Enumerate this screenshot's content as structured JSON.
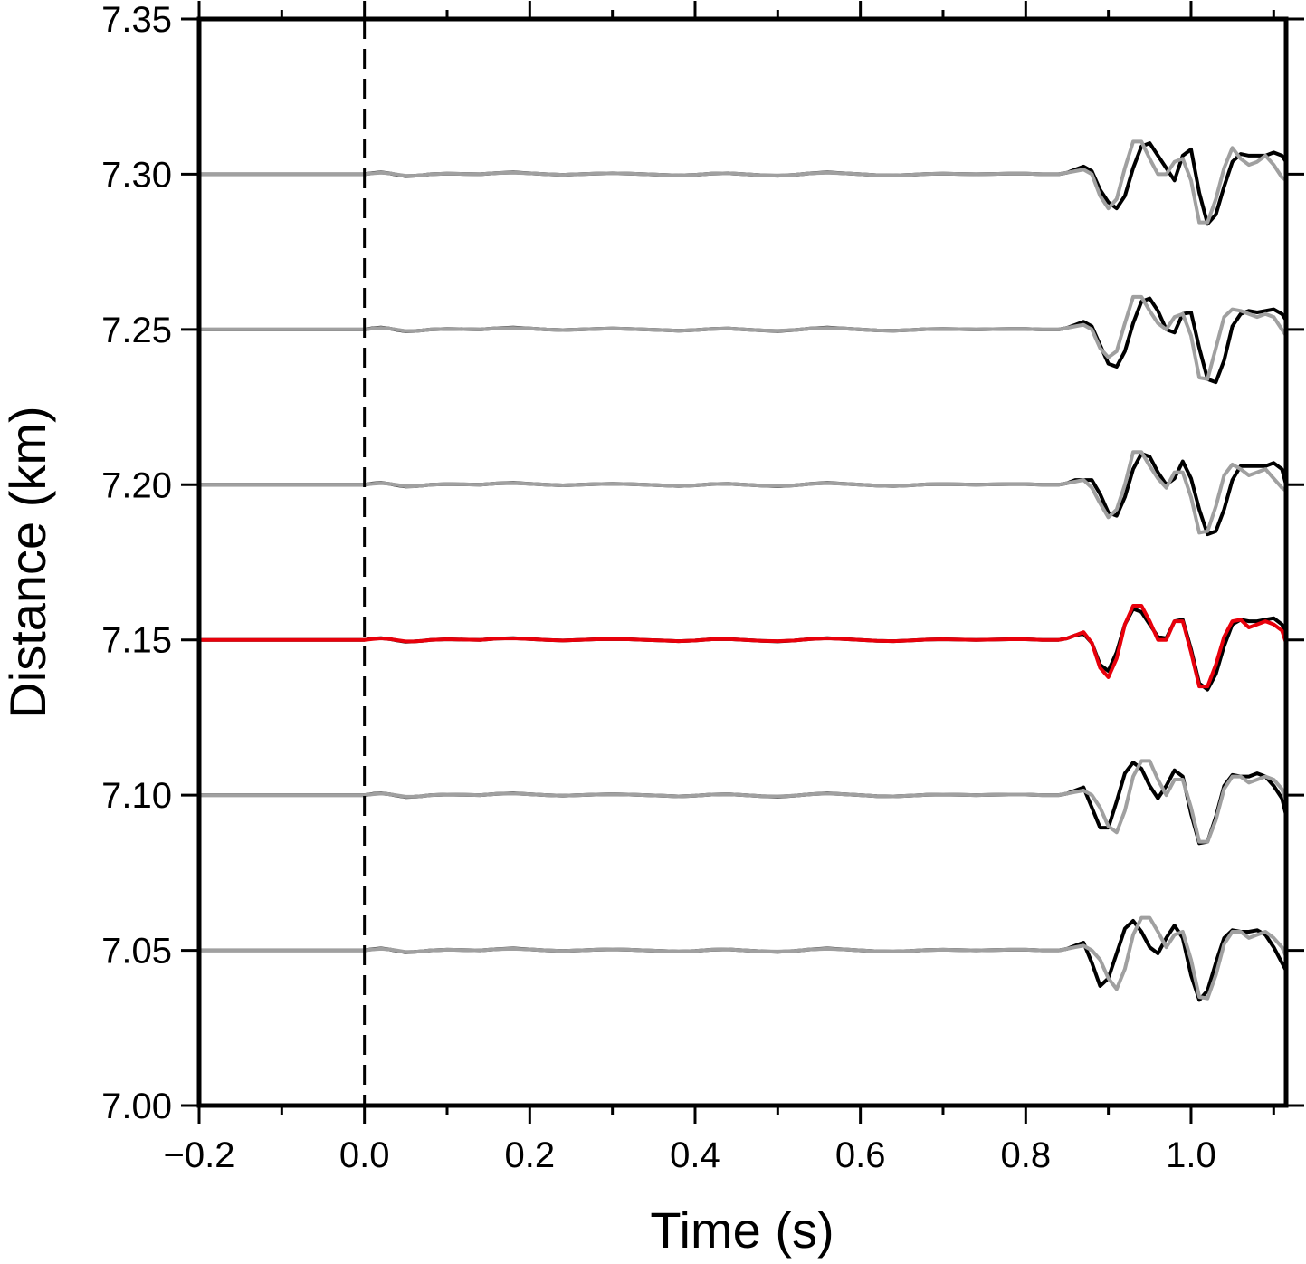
{
  "chart_data": {
    "type": "line",
    "title": "",
    "xlabel": "Time (s)",
    "ylabel": "Distance (km)",
    "xlim": [
      -0.2,
      1.115
    ],
    "ylim": [
      7.0,
      7.35
    ],
    "xticks": [
      -0.2,
      0.0,
      0.2,
      0.4,
      0.6,
      0.8,
      1.0
    ],
    "xtick_labels": [
      "−0.2",
      "0.0",
      "0.2",
      "0.4",
      "0.6",
      "0.8",
      "1.0"
    ],
    "yticks": [
      7.0,
      7.05,
      7.1,
      7.15,
      7.2,
      7.25,
      7.3,
      7.35
    ],
    "ytick_labels": [
      "7.00",
      "7.05",
      "7.10",
      "7.15",
      "7.20",
      "7.25",
      "7.30",
      "7.35"
    ],
    "reference_line": {
      "x": 0.0,
      "style": "dashed",
      "color": "#000000"
    },
    "grid": false,
    "colors": {
      "observed": "#000000",
      "synthetic": "#a0a0a0",
      "highlight": "#e8000b"
    },
    "trace_time": [
      -0.2,
      0.0,
      0.01,
      0.02,
      0.03,
      0.04,
      0.05,
      0.06,
      0.07,
      0.08,
      0.1,
      0.12,
      0.14,
      0.16,
      0.18,
      0.2,
      0.22,
      0.24,
      0.26,
      0.28,
      0.3,
      0.32,
      0.34,
      0.36,
      0.38,
      0.4,
      0.42,
      0.44,
      0.46,
      0.48,
      0.5,
      0.52,
      0.54,
      0.56,
      0.58,
      0.6,
      0.62,
      0.64,
      0.66,
      0.68,
      0.7,
      0.72,
      0.74,
      0.76,
      0.78,
      0.8,
      0.82,
      0.84,
      0.85,
      0.86,
      0.87,
      0.88,
      0.89,
      0.9,
      0.91,
      0.92,
      0.93,
      0.94,
      0.95,
      0.96,
      0.97,
      0.98,
      0.99,
      1.0,
      1.01,
      1.02,
      1.03,
      1.04,
      1.05,
      1.06,
      1.07,
      1.08,
      1.09,
      1.1,
      1.11,
      1.115
    ],
    "traces": [
      {
        "baseline": 7.3,
        "observed": [
          0,
          0,
          0.0004,
          0.0006,
          0.0003,
          -0.0002,
          -0.0006,
          -0.0005,
          -0.0003,
          0.0,
          0.0002,
          0.0001,
          0.0,
          0.0004,
          0.0006,
          0.0003,
          0.0,
          -0.0002,
          0.0,
          0.0002,
          0.0003,
          0.0002,
          0.0,
          -0.0002,
          -0.0004,
          -0.0002,
          0.0002,
          0.0003,
          0.0,
          -0.0003,
          -0.0005,
          -0.0002,
          0.0003,
          0.0006,
          0.0003,
          0.0,
          -0.0003,
          -0.0004,
          -0.0002,
          0.0001,
          0.0002,
          0.0001,
          0.0,
          0.0001,
          0.0002,
          0.0002,
          0.0,
          0.0,
          0.0005,
          0.0015,
          0.0025,
          0.001,
          -0.005,
          -0.009,
          -0.011,
          -0.007,
          0.002,
          0.009,
          0.01,
          0.006,
          0.002,
          -0.002,
          0.006,
          0.008,
          -0.006,
          -0.016,
          -0.013,
          -0.004,
          0.004,
          0.0065,
          0.006,
          0.006,
          0.006,
          0.007,
          0.006,
          0.004
        ],
        "synthetic": [
          0,
          0,
          0.0003,
          0.0005,
          0.0003,
          -0.0001,
          -0.0005,
          -0.0005,
          -0.0003,
          0.0,
          0.0002,
          0.0001,
          0.0,
          0.0004,
          0.0005,
          0.0003,
          0.0,
          -0.0002,
          0.0,
          0.0002,
          0.0003,
          0.0002,
          0.0,
          -0.0002,
          -0.0004,
          -0.0002,
          0.0002,
          0.0003,
          0.0,
          -0.0003,
          -0.0004,
          -0.0002,
          0.0003,
          0.0005,
          0.0003,
          0.0,
          -0.0003,
          -0.0004,
          -0.0002,
          0.0001,
          0.0002,
          0.0001,
          0.0,
          0.0001,
          0.0002,
          0.0002,
          0.0,
          0.0,
          0.0005,
          0.001,
          0.0015,
          0.0,
          -0.007,
          -0.011,
          -0.008,
          0.002,
          0.0105,
          0.0105,
          0.005,
          0.0,
          0.0,
          0.004,
          0.005,
          -0.002,
          -0.0155,
          -0.0155,
          -0.008,
          0.002,
          0.0085,
          0.005,
          0.003,
          0.004,
          0.006,
          0.003,
          -0.001,
          -0.002
        ]
      },
      {
        "baseline": 7.25,
        "observed": [
          0,
          0,
          0.0004,
          0.0006,
          0.0003,
          -0.0002,
          -0.0006,
          -0.0005,
          -0.0003,
          0.0,
          0.0002,
          0.0001,
          0.0,
          0.0004,
          0.0006,
          0.0003,
          0.0,
          -0.0002,
          0.0,
          0.0002,
          0.0003,
          0.0002,
          0.0,
          -0.0002,
          -0.0004,
          -0.0002,
          0.0002,
          0.0003,
          0.0,
          -0.0003,
          -0.0005,
          -0.0002,
          0.0003,
          0.0006,
          0.0003,
          0.0,
          -0.0003,
          -0.0004,
          -0.0002,
          0.0001,
          0.0002,
          0.0001,
          0.0,
          0.0001,
          0.0002,
          0.0002,
          0.0,
          0.0,
          0.0005,
          0.0015,
          0.0025,
          0.001,
          -0.005,
          -0.011,
          -0.012,
          -0.007,
          0.002,
          0.009,
          0.01,
          0.006,
          0.0,
          -0.001,
          0.005,
          0.0055,
          -0.006,
          -0.016,
          -0.017,
          -0.01,
          0.001,
          0.005,
          0.006,
          0.0055,
          0.006,
          0.0065,
          0.005,
          0.003
        ],
        "synthetic": [
          0,
          0,
          0.0003,
          0.0005,
          0.0003,
          -0.0001,
          -0.0005,
          -0.0005,
          -0.0003,
          0.0,
          0.0002,
          0.0001,
          0.0,
          0.0004,
          0.0005,
          0.0003,
          0.0,
          -0.0002,
          0.0,
          0.0002,
          0.0003,
          0.0002,
          0.0,
          -0.0002,
          -0.0004,
          -0.0002,
          0.0002,
          0.0003,
          0.0,
          -0.0003,
          -0.0004,
          -0.0002,
          0.0003,
          0.0005,
          0.0003,
          0.0,
          -0.0003,
          -0.0004,
          -0.0002,
          0.0001,
          0.0002,
          0.0001,
          0.0,
          0.0001,
          0.0002,
          0.0002,
          0.0,
          0.0,
          0.0005,
          0.001,
          0.0015,
          0.0,
          -0.006,
          -0.009,
          -0.007,
          0.002,
          0.0105,
          0.0105,
          0.006,
          0.002,
          0.0,
          0.004,
          0.005,
          -0.002,
          -0.0155,
          -0.016,
          -0.006,
          0.004,
          0.0065,
          0.006,
          0.005,
          0.004,
          0.005,
          0.004,
          0.0,
          -0.002
        ]
      },
      {
        "baseline": 7.2,
        "observed": [
          0,
          0,
          0.0004,
          0.0006,
          0.0003,
          -0.0002,
          -0.0006,
          -0.0005,
          -0.0003,
          0.0,
          0.0002,
          0.0001,
          0.0,
          0.0004,
          0.0006,
          0.0003,
          0.0,
          -0.0002,
          0.0,
          0.0002,
          0.0003,
          0.0002,
          0.0,
          -0.0002,
          -0.0004,
          -0.0002,
          0.0002,
          0.0003,
          0.0,
          -0.0003,
          -0.0005,
          -0.0002,
          0.0003,
          0.0006,
          0.0003,
          0.0,
          -0.0003,
          -0.0004,
          -0.0002,
          0.0001,
          0.0002,
          0.0001,
          0.0,
          0.0001,
          0.0002,
          0.0002,
          0.0,
          0.0,
          0.0005,
          0.0015,
          0.0015,
          0.0015,
          -0.003,
          -0.009,
          -0.01,
          -0.004,
          0.005,
          0.01,
          0.009,
          0.004,
          0.0,
          0.002,
          0.0075,
          0.002,
          -0.008,
          -0.016,
          -0.015,
          -0.008,
          0.0015,
          0.006,
          0.006,
          0.006,
          0.006,
          0.007,
          0.005,
          0.0
        ],
        "synthetic": [
          0,
          0,
          0.0003,
          0.0005,
          0.0003,
          -0.0001,
          -0.0005,
          -0.0005,
          -0.0003,
          0.0,
          0.0002,
          0.0001,
          0.0,
          0.0004,
          0.0005,
          0.0003,
          0.0,
          -0.0002,
          0.0,
          0.0002,
          0.0003,
          0.0002,
          0.0,
          -0.0002,
          -0.0004,
          -0.0002,
          0.0002,
          0.0003,
          0.0,
          -0.0003,
          -0.0004,
          -0.0002,
          0.0003,
          0.0005,
          0.0003,
          0.0,
          -0.0003,
          -0.0004,
          -0.0002,
          0.0001,
          0.0002,
          0.0001,
          0.0,
          0.0001,
          0.0002,
          0.0002,
          0.0,
          0.0,
          0.0005,
          0.001,
          0.0015,
          -0.001,
          -0.006,
          -0.0105,
          -0.008,
          0.0,
          0.0105,
          0.0105,
          0.006,
          0.002,
          -0.001,
          0.004,
          0.004,
          -0.004,
          -0.0155,
          -0.015,
          -0.007,
          0.003,
          0.0065,
          0.005,
          0.003,
          0.004,
          0.005,
          0.002,
          -0.001,
          -0.002
        ]
      },
      {
        "baseline": 7.15,
        "highlight": true,
        "observed": [
          0,
          0,
          0.0004,
          0.0006,
          0.0003,
          -0.0002,
          -0.0006,
          -0.0005,
          -0.0003,
          0.0,
          0.0002,
          0.0001,
          0.0,
          0.0004,
          0.0006,
          0.0003,
          0.0,
          -0.0002,
          0.0,
          0.0002,
          0.0003,
          0.0002,
          0.0,
          -0.0002,
          -0.0004,
          -0.0002,
          0.0002,
          0.0003,
          0.0,
          -0.0003,
          -0.0005,
          -0.0002,
          0.0003,
          0.0006,
          0.0003,
          0.0,
          -0.0003,
          -0.0004,
          -0.0002,
          0.0001,
          0.0002,
          0.0001,
          0.0,
          0.0001,
          0.0002,
          0.0002,
          0.0,
          0.0,
          0.0005,
          0.0015,
          0.002,
          -0.001,
          -0.008,
          -0.01,
          -0.004,
          0.005,
          0.01,
          0.009,
          0.005,
          0.001,
          0.0005,
          0.006,
          0.0065,
          -0.003,
          -0.014,
          -0.016,
          -0.011,
          -0.002,
          0.005,
          0.0065,
          0.006,
          0.006,
          0.0065,
          0.007,
          0.005,
          0.002
        ],
        "synthetic": [
          0,
          0,
          0.0003,
          0.0005,
          0.0003,
          -0.0001,
          -0.0005,
          -0.0005,
          -0.0003,
          0.0,
          0.0002,
          0.0001,
          0.0,
          0.0004,
          0.0005,
          0.0003,
          0.0,
          -0.0002,
          0.0,
          0.0002,
          0.0003,
          0.0002,
          0.0,
          -0.0002,
          -0.0004,
          -0.0002,
          0.0002,
          0.0003,
          0.0,
          -0.0003,
          -0.0004,
          -0.0002,
          0.0003,
          0.0005,
          0.0003,
          0.0,
          -0.0003,
          -0.0004,
          -0.0002,
          0.0001,
          0.0002,
          0.0001,
          0.0,
          0.0001,
          0.0002,
          0.0002,
          0.0,
          0.0,
          0.0005,
          0.0015,
          0.0025,
          -0.001,
          -0.009,
          -0.012,
          -0.006,
          0.005,
          0.011,
          0.011,
          0.006,
          0.0,
          0.0,
          0.006,
          0.006,
          -0.004,
          -0.015,
          -0.015,
          -0.008,
          0.001,
          0.006,
          0.0065,
          0.004,
          0.005,
          0.006,
          0.005,
          0.003,
          -0.001
        ]
      },
      {
        "baseline": 7.1,
        "observed": [
          0,
          0,
          0.0004,
          0.0006,
          0.0003,
          -0.0002,
          -0.0006,
          -0.0005,
          -0.0003,
          0.0,
          0.0002,
          0.0001,
          0.0,
          0.0004,
          0.0006,
          0.0003,
          0.0,
          -0.0002,
          0.0,
          0.0002,
          0.0003,
          0.0002,
          0.0,
          -0.0002,
          -0.0004,
          -0.0002,
          0.0002,
          0.0003,
          0.0,
          -0.0003,
          -0.0005,
          -0.0002,
          0.0003,
          0.0006,
          0.0003,
          0.0,
          -0.0003,
          -0.0004,
          -0.0002,
          0.0001,
          0.0002,
          0.0001,
          0.0,
          0.0001,
          0.0002,
          0.0002,
          0.0,
          0.0,
          0.0005,
          0.0015,
          0.0025,
          -0.004,
          -0.0105,
          -0.0105,
          -0.002,
          0.007,
          0.0105,
          0.0085,
          0.003,
          -0.001,
          0.003,
          0.008,
          0.006,
          -0.006,
          -0.0155,
          -0.015,
          -0.007,
          0.003,
          0.0065,
          0.006,
          0.006,
          0.007,
          0.006,
          0.003,
          -0.001,
          -0.0065
        ],
        "synthetic": [
          0,
          0,
          0.0003,
          0.0005,
          0.0003,
          -0.0001,
          -0.0005,
          -0.0005,
          -0.0003,
          0.0,
          0.0002,
          0.0001,
          0.0,
          0.0004,
          0.0005,
          0.0003,
          0.0,
          -0.0002,
          0.0,
          0.0002,
          0.0003,
          0.0002,
          0.0,
          -0.0002,
          -0.0004,
          -0.0002,
          0.0002,
          0.0003,
          0.0,
          -0.0003,
          -0.0004,
          -0.0002,
          0.0003,
          0.0005,
          0.0003,
          0.0,
          -0.0003,
          -0.0004,
          -0.0002,
          0.0001,
          0.0002,
          0.0001,
          0.0,
          0.0001,
          0.0002,
          0.0002,
          0.0,
          0.0,
          0.0005,
          0.001,
          0.0015,
          0.0,
          -0.004,
          -0.01,
          -0.012,
          -0.005,
          0.006,
          0.011,
          0.011,
          0.005,
          0.0,
          0.005,
          0.005,
          -0.004,
          -0.015,
          -0.015,
          -0.008,
          0.002,
          0.006,
          0.006,
          0.004,
          0.005,
          0.006,
          0.005,
          0.002,
          -0.002
        ]
      },
      {
        "baseline": 7.05,
        "observed": [
          0,
          0,
          0.0004,
          0.0006,
          0.0003,
          -0.0002,
          -0.0006,
          -0.0005,
          -0.0003,
          0.0,
          0.0002,
          0.0001,
          0.0,
          0.0004,
          0.0006,
          0.0003,
          0.0,
          -0.0002,
          0.0,
          0.0002,
          0.0003,
          0.0002,
          0.0,
          -0.0002,
          -0.0004,
          -0.0002,
          0.0002,
          0.0003,
          0.0,
          -0.0003,
          -0.0005,
          -0.0002,
          0.0003,
          0.0006,
          0.0003,
          0.0,
          -0.0003,
          -0.0004,
          -0.0002,
          0.0001,
          0.0002,
          0.0001,
          0.0,
          0.0001,
          0.0002,
          0.0002,
          0.0,
          0.0,
          0.0005,
          0.0015,
          0.0025,
          -0.004,
          -0.0115,
          -0.009,
          -0.001,
          0.007,
          0.0095,
          0.006,
          0.001,
          -0.001,
          0.004,
          0.008,
          0.004,
          -0.008,
          -0.016,
          -0.013,
          -0.004,
          0.004,
          0.0065,
          0.006,
          0.006,
          0.0065,
          0.005,
          0.001,
          -0.004,
          -0.0065
        ],
        "synthetic": [
          0,
          0,
          0.0003,
          0.0005,
          0.0003,
          -0.0001,
          -0.0005,
          -0.0005,
          -0.0003,
          0.0,
          0.0002,
          0.0001,
          0.0,
          0.0004,
          0.0005,
          0.0003,
          0.0,
          -0.0002,
          0.0,
          0.0002,
          0.0003,
          0.0002,
          0.0,
          -0.0002,
          -0.0004,
          -0.0002,
          0.0002,
          0.0003,
          0.0,
          -0.0003,
          -0.0004,
          -0.0002,
          0.0003,
          0.0005,
          0.0003,
          0.0,
          -0.0003,
          -0.0004,
          -0.0002,
          0.0001,
          0.0002,
          0.0001,
          0.0,
          0.0001,
          0.0002,
          0.0002,
          0.0,
          0.0,
          0.0005,
          0.001,
          0.0015,
          0.0,
          -0.003,
          -0.009,
          -0.0125,
          -0.006,
          0.005,
          0.0105,
          0.0105,
          0.006,
          0.001,
          0.005,
          0.006,
          -0.003,
          -0.015,
          -0.0155,
          -0.008,
          0.002,
          0.006,
          0.006,
          0.004,
          0.005,
          0.006,
          0.004,
          0.001,
          -0.002
        ]
      }
    ]
  }
}
